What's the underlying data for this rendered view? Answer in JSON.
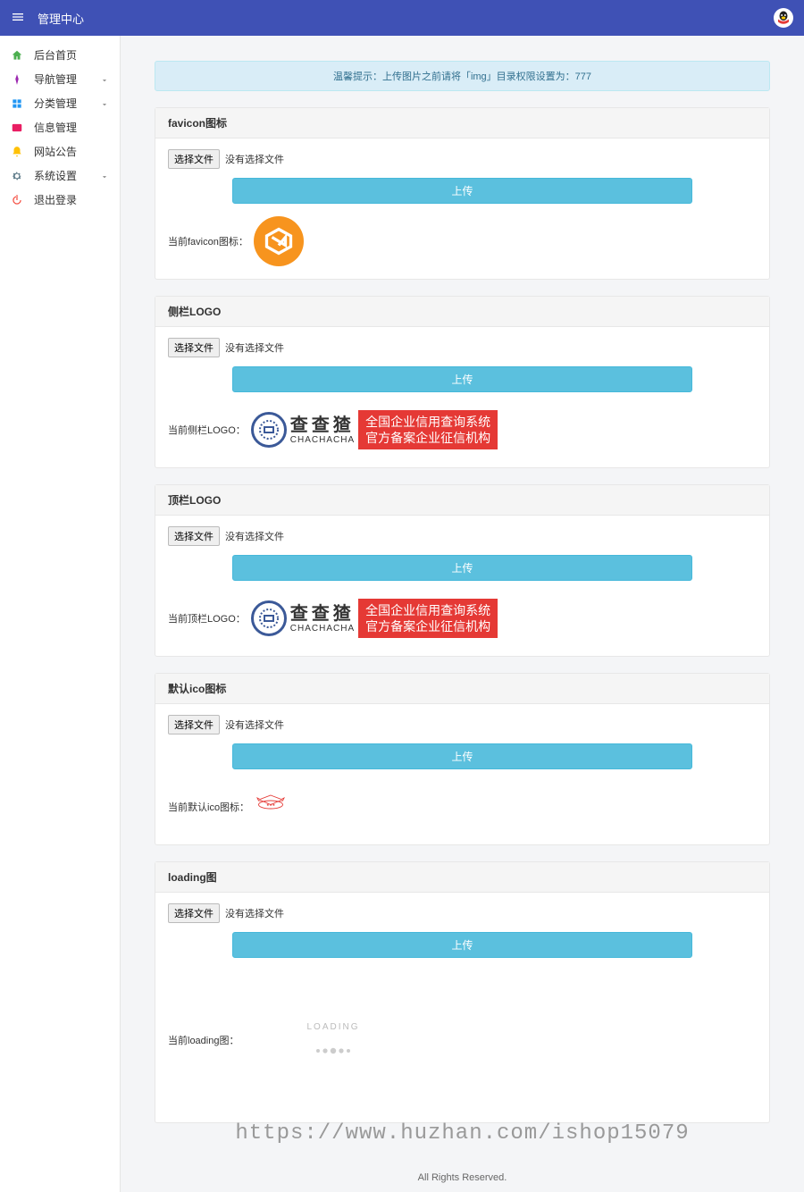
{
  "header": {
    "title": "管理中心"
  },
  "sidebar": {
    "items": [
      {
        "label": "后台首页",
        "icon": "home",
        "color": "#4caf50",
        "expandable": false
      },
      {
        "label": "导航管理",
        "icon": "nav",
        "color": "#9c27b0",
        "expandable": true
      },
      {
        "label": "分类管理",
        "icon": "category",
        "color": "#2196f3",
        "expandable": true
      },
      {
        "label": "信息管理",
        "icon": "info",
        "color": "#e91e63",
        "expandable": false
      },
      {
        "label": "网站公告",
        "icon": "bell",
        "color": "#ffc107",
        "expandable": false
      },
      {
        "label": "系统设置",
        "icon": "gear",
        "color": "#607d8b",
        "expandable": true
      },
      {
        "label": "退出登录",
        "icon": "logout",
        "color": "#f44336",
        "expandable": false
      }
    ]
  },
  "alert": {
    "text": "温馨提示：上传图片之前请将「img」目录权限设置为：777"
  },
  "file_picker": {
    "button_label": "选择文件",
    "no_file_text": "没有选择文件"
  },
  "upload_button_label": "上传",
  "cards": {
    "favicon": {
      "title": "favicon图标",
      "current_label": "当前favicon图标：",
      "preview": {
        "type": "favicon",
        "bg_color": "#f7941e"
      }
    },
    "sidebar_logo": {
      "title": "侧栏LOGO",
      "current_label": "当前侧栏LOGO：",
      "preview": {
        "type": "chachacha",
        "seal_color": "#3b5998",
        "cn_text": "查查猹",
        "en_text": "CHACHACHA",
        "red_line1": "全国企业信用查询系统",
        "red_line2": "官方备案企业征信机构",
        "red_bg": "#e53935"
      }
    },
    "top_logo": {
      "title": "顶栏LOGO",
      "current_label": "当前顶栏LOGO：",
      "preview": {
        "type": "chachacha",
        "seal_color": "#3b5998",
        "cn_text": "查查猹",
        "en_text": "CHACHACHA",
        "red_line1": "全国企业信用查询系统",
        "red_line2": "官方备案企业征信机构",
        "red_bg": "#e53935"
      }
    },
    "default_ico": {
      "title": "默认ico图标",
      "current_label": "当前默认ico图标：",
      "preview": {
        "type": "ico",
        "color": "#e53935"
      }
    },
    "loading": {
      "title": "loading图",
      "current_label": "当前loading图：",
      "preview": {
        "type": "loading",
        "text": "LOADING"
      }
    }
  },
  "watermark": "https://www.huzhan.com/ishop15079",
  "footer": "All Rights Reserved.",
  "colors": {
    "header_bg": "#3f51b5",
    "alert_bg": "#d9edf7",
    "alert_text": "#31708f",
    "upload_btn_bg": "#5bc0de",
    "card_header_bg": "#f5f5f5",
    "body_bg": "#f4f5f7"
  }
}
